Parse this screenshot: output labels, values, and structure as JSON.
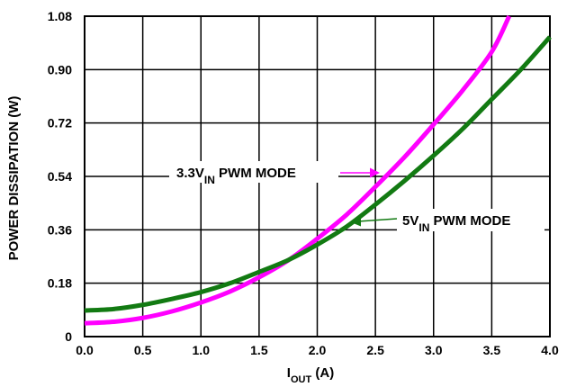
{
  "chart_data": {
    "type": "line",
    "title": "",
    "xlabel": "I",
    "xlabel_sub": "OUT",
    "xlabel_unit": " (A)",
    "ylabel": "POWER DISSIPATION (W)",
    "xlim": [
      0.0,
      4.0
    ],
    "ylim": [
      0,
      1.08
    ],
    "x_ticks": [
      0.0,
      0.5,
      1.0,
      1.5,
      2.0,
      2.5,
      3.0,
      3.5,
      4.0
    ],
    "x_tick_labels": [
      "0.0",
      "0.5",
      "1.0",
      "1.5",
      "2.0",
      "2.5",
      "3.0",
      "3.5",
      "4.0"
    ],
    "y_ticks": [
      0,
      0.18,
      0.36,
      0.54,
      0.72,
      0.9,
      1.08
    ],
    "y_tick_labels": [
      "0",
      "0.18",
      "0.36",
      "0.54",
      "0.72",
      "0.90",
      "1.08"
    ],
    "grid": true,
    "series": [
      {
        "label_main": "3.3V",
        "label_sub": "IN",
        "label_rest": " PWM MODE",
        "color": "#ff00ff",
        "x": [
          0.0,
          0.25,
          0.5,
          0.75,
          1.0,
          1.25,
          1.5,
          1.75,
          2.0,
          2.25,
          2.5,
          2.75,
          3.0,
          3.25,
          3.5,
          3.65
        ],
        "y": [
          0.045,
          0.05,
          0.063,
          0.085,
          0.115,
          0.152,
          0.2,
          0.257,
          0.33,
          0.41,
          0.505,
          0.605,
          0.715,
          0.83,
          0.96,
          1.08
        ]
      },
      {
        "label_main": "5V",
        "label_sub": "IN",
        "label_rest": " PWM MODE",
        "color": "#127a12",
        "x": [
          0.0,
          0.25,
          0.5,
          0.75,
          1.0,
          1.25,
          1.5,
          1.75,
          2.0,
          2.25,
          2.5,
          2.75,
          3.0,
          3.25,
          3.5,
          3.75,
          4.0
        ],
        "y": [
          0.088,
          0.093,
          0.107,
          0.127,
          0.15,
          0.18,
          0.218,
          0.258,
          0.31,
          0.37,
          0.445,
          0.525,
          0.61,
          0.7,
          0.8,
          0.9,
          1.01
        ]
      }
    ]
  }
}
